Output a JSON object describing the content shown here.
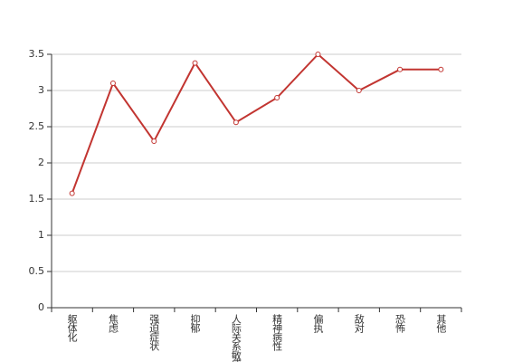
{
  "chart_data": {
    "type": "line",
    "categories": [
      "躯体化",
      "焦虑",
      "强迫症状",
      "抑郁",
      "人际关系敏感",
      "精神病性",
      "偏执",
      "敌对",
      "恐怖",
      "其他"
    ],
    "series": [
      {
        "name": "",
        "color": "#c23531",
        "values": [
          1.58,
          3.1,
          2.3,
          3.38,
          2.56,
          2.9,
          3.5,
          3.0,
          3.29,
          3.29
        ]
      }
    ],
    "ylim": [
      0,
      3.5
    ],
    "yticks": [
      0,
      0.5,
      1,
      1.5,
      2,
      2.5,
      3,
      3.5
    ],
    "grid": true
  }
}
